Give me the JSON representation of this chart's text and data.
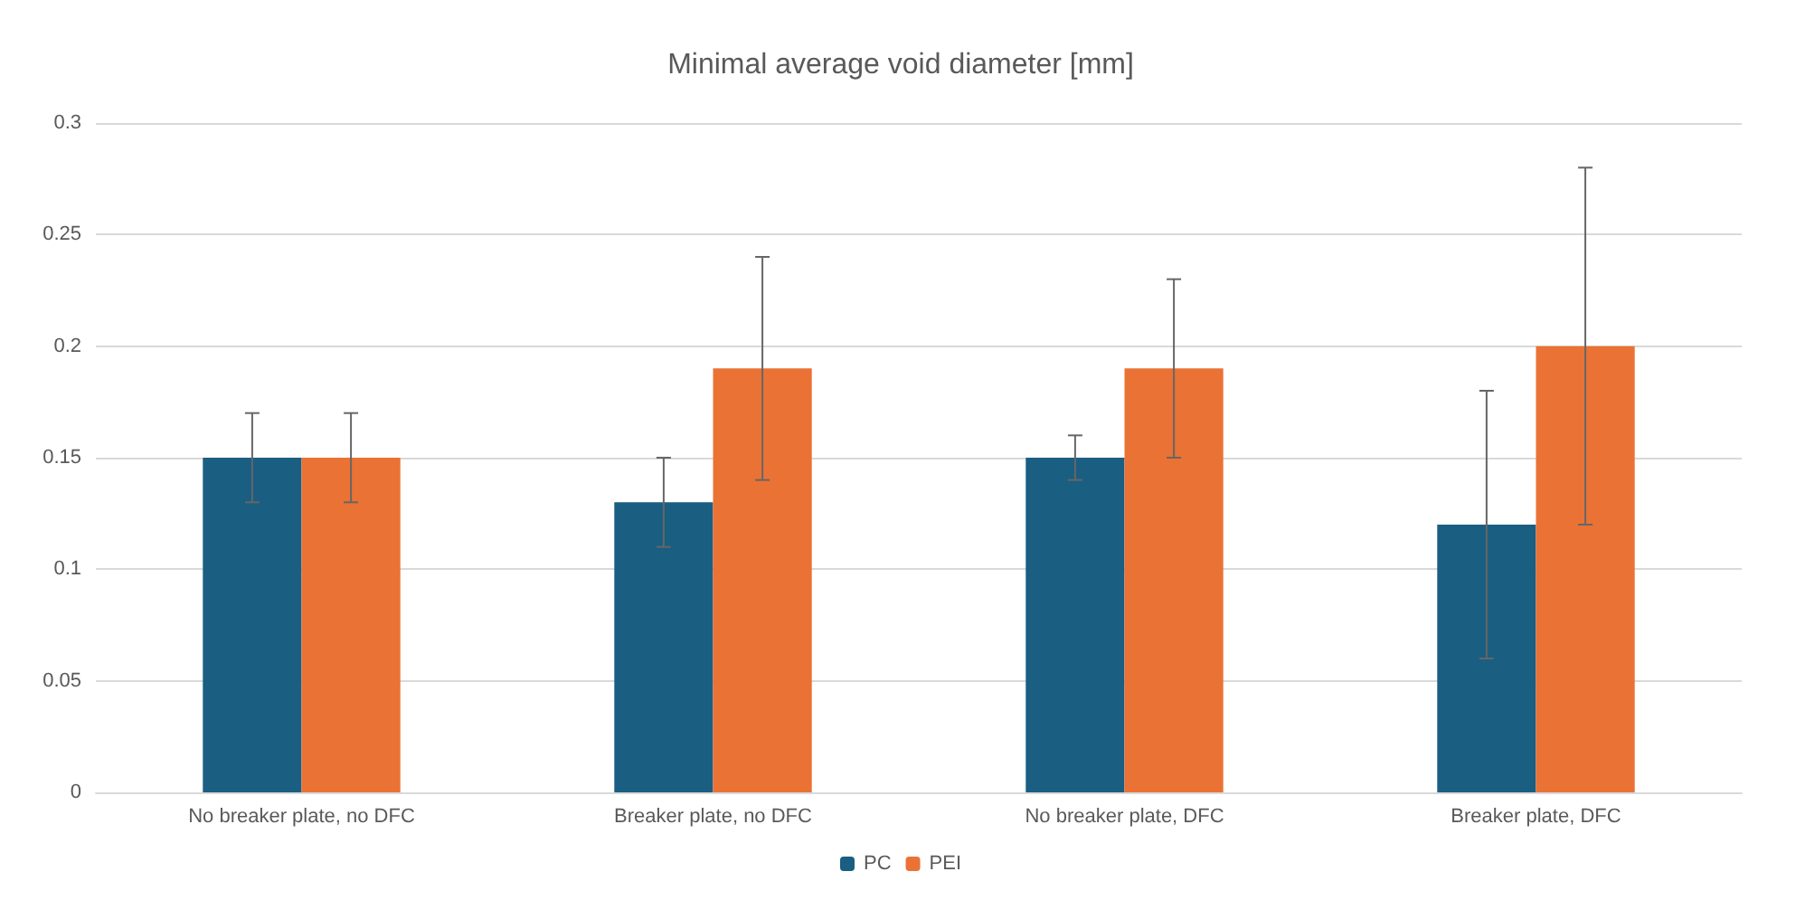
{
  "chart_data": {
    "type": "bar",
    "title": "Minimal average void diameter [mm]",
    "categories": [
      "No breaker plate, no DFC",
      "Breaker plate, no DFC",
      "No breaker plate, DFC",
      "Breaker plate, DFC"
    ],
    "series": [
      {
        "name": "PC",
        "color": "#1a5e82",
        "values": [
          0.15,
          0.13,
          0.15,
          0.12
        ],
        "errors": [
          [
            0.13,
            0.17
          ],
          [
            0.11,
            0.15
          ],
          [
            0.14,
            0.16
          ],
          [
            0.06,
            0.18
          ]
        ]
      },
      {
        "name": "PEI",
        "color": "#ea7234",
        "values": [
          0.15,
          0.19,
          0.19,
          0.2
        ],
        "errors": [
          [
            0.13,
            0.17
          ],
          [
            0.14,
            0.24
          ],
          [
            0.15,
            0.23
          ],
          [
            0.12,
            0.28
          ]
        ]
      }
    ],
    "ylim": [
      0,
      0.3
    ],
    "yticks": [
      0,
      0.05,
      0.1,
      0.15,
      0.2,
      0.25,
      0.3
    ],
    "grid": "y",
    "legend": "bottom"
  }
}
